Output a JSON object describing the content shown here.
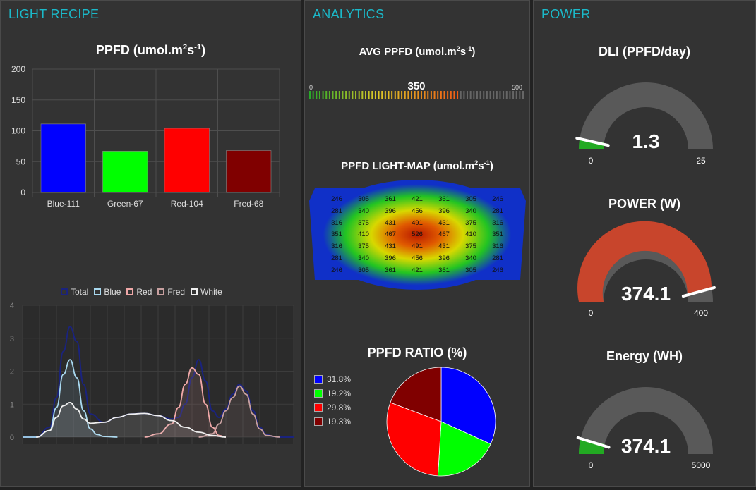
{
  "panels": {
    "recipe": {
      "title": "LIGHT RECIPE"
    },
    "analytics": {
      "title": "ANALYTICS"
    },
    "power": {
      "title": "POWER"
    }
  },
  "ppfd_bar": {
    "title_main": "PPFD (umol.m",
    "title_sup1": "2",
    "title_mid": "s",
    "title_sup2": "-1",
    "title_end": ")"
  },
  "spectrum_legend": [
    {
      "label": "Total",
      "color": "#1a237e"
    },
    {
      "label": "Blue",
      "color": "#a8d8ef"
    },
    {
      "label": "Red",
      "color": "#f0a8a8"
    },
    {
      "label": "Fred",
      "color": "#c8a0a0"
    },
    {
      "label": "White",
      "color": "#eeeeee"
    }
  ],
  "avg_ppfd": {
    "title_main": "AVG PPFD (umol.m",
    "title_sup1": "2",
    "title_mid": "s",
    "title_sup2": "-1",
    "title_end": ")",
    "value": "350",
    "min": "0",
    "max": "500",
    "level": 0.7
  },
  "lightmap": {
    "title_main": "PPFD LIGHT-MAP (umol.m",
    "title_sup1": "2",
    "title_mid": "s",
    "title_sup2": "-1",
    "title_end": ")",
    "rows": [
      [
        "246",
        "305",
        "361",
        "421",
        "361",
        "305",
        "246"
      ],
      [
        "281",
        "340",
        "396",
        "456",
        "396",
        "340",
        "281"
      ],
      [
        "316",
        "375",
        "431",
        "491",
        "431",
        "375",
        "316"
      ],
      [
        "351",
        "410",
        "467",
        "526",
        "467",
        "410",
        "351"
      ],
      [
        "316",
        "375",
        "431",
        "491",
        "431",
        "375",
        "316"
      ],
      [
        "281",
        "340",
        "396",
        "456",
        "396",
        "340",
        "281"
      ],
      [
        "246",
        "305",
        "361",
        "421",
        "361",
        "305",
        "246"
      ]
    ]
  },
  "ratio": {
    "title": "PPFD RATIO (%)",
    "items": [
      {
        "label": "31.8%",
        "color": "#0000ff"
      },
      {
        "label": "19.2%",
        "color": "#00ff00"
      },
      {
        "label": "29.8%",
        "color": "#ff0000"
      },
      {
        "label": "19.3%",
        "color": "#800000"
      }
    ]
  },
  "gauges": {
    "dli": {
      "title": "DLI (PPFD/day)",
      "value": "1.3",
      "min": "0",
      "max": "25",
      "fraction": 0.052,
      "color": "#22aa22"
    },
    "power": {
      "title": "POWER (W)",
      "value": "374.1",
      "min": "0",
      "max": "400",
      "fraction": 0.935,
      "color": "#c8452c"
    },
    "energy": {
      "title": "Energy (WH)",
      "value": "374.1",
      "min": "0",
      "max": "5000",
      "fraction": 0.075,
      "color": "#22aa22"
    }
  },
  "chart_data": [
    {
      "type": "bar",
      "title": "PPFD (umol.m2s-1)",
      "categories": [
        "Blue-111",
        "Green-67",
        "Red-104",
        "Fred-68"
      ],
      "values": [
        111,
        67,
        104,
        68
      ],
      "colors": [
        "#0000ff",
        "#00ff00",
        "#ff0000",
        "#800000"
      ],
      "yticks": [
        0,
        50,
        100,
        150,
        200
      ],
      "ylim": [
        0,
        200
      ],
      "grid": true
    },
    {
      "type": "line",
      "title": "",
      "ylim": [
        0,
        4
      ],
      "yticks": [
        0,
        1,
        2,
        3,
        4
      ],
      "grid": true,
      "legend": "top",
      "series": [
        {
          "name": "Total",
          "x": [
            380,
            400,
            420,
            430,
            440,
            450,
            460,
            470,
            480,
            500,
            520,
            540,
            560,
            580,
            600,
            610,
            620,
            630,
            640,
            650,
            660,
            670,
            680,
            690,
            700,
            710,
            720,
            730,
            740,
            750,
            760,
            770,
            780
          ],
          "values": [
            0,
            0,
            0.3,
            1.2,
            2.6,
            3.35,
            2.9,
            1.6,
            0.7,
            0.45,
            0.6,
            0.7,
            0.72,
            0.65,
            0.55,
            0.6,
            1.0,
            1.8,
            2.35,
            1.7,
            0.8,
            0.6,
            0.85,
            1.3,
            1.6,
            1.4,
            0.8,
            0.3,
            0.08,
            0.02,
            0,
            0,
            0
          ]
        },
        {
          "name": "Blue",
          "x": [
            380,
            400,
            420,
            430,
            440,
            450,
            460,
            470,
            480,
            490,
            500,
            520
          ],
          "values": [
            0,
            0,
            0.2,
            0.9,
            1.9,
            2.35,
            1.8,
            0.8,
            0.25,
            0.08,
            0.02,
            0
          ]
        },
        {
          "name": "Red",
          "x": [
            560,
            580,
            600,
            610,
            620,
            630,
            640,
            650,
            660,
            670,
            680
          ],
          "values": [
            0,
            0.1,
            0.4,
            0.9,
            1.6,
            2.1,
            1.9,
            1.0,
            0.3,
            0.05,
            0
          ]
        },
        {
          "name": "Fred",
          "x": [
            640,
            660,
            670,
            680,
            690,
            700,
            710,
            720,
            730,
            740,
            760
          ],
          "values": [
            0,
            0.1,
            0.4,
            0.8,
            1.2,
            1.55,
            1.3,
            0.7,
            0.25,
            0.05,
            0
          ]
        },
        {
          "name": "White",
          "x": [
            400,
            420,
            430,
            440,
            450,
            460,
            470,
            480,
            500,
            520,
            540,
            560,
            580,
            600,
            620,
            640,
            660,
            680
          ],
          "values": [
            0,
            0.2,
            0.6,
            0.95,
            1.05,
            0.85,
            0.55,
            0.42,
            0.45,
            0.6,
            0.7,
            0.72,
            0.65,
            0.5,
            0.3,
            0.15,
            0.05,
            0
          ]
        }
      ]
    },
    {
      "type": "pie",
      "title": "PPFD RATIO (%)",
      "categories": [
        "31.8%",
        "19.2%",
        "29.8%",
        "19.3%"
      ],
      "values": [
        31.8,
        19.2,
        29.8,
        19.3
      ],
      "colors": [
        "#0000ff",
        "#00ff00",
        "#ff0000",
        "#800000"
      ]
    }
  ]
}
